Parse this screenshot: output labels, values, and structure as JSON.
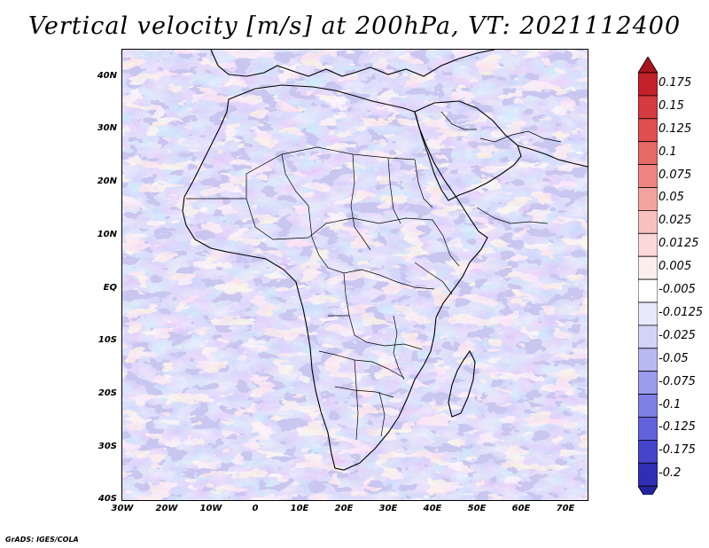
{
  "title": "Vertical velocity [m/s] at 200hPa, VT: 2021112400",
  "credit": "GrADS: IGES/COLA",
  "lat_labels": [
    "40N",
    "30N",
    "20N",
    "10N",
    "EQ",
    "10S",
    "20S",
    "30S",
    "40S"
  ],
  "lon_labels": [
    "30W",
    "20W",
    "10W",
    "0",
    "10E",
    "20E",
    "30E",
    "40E",
    "50E",
    "60E",
    "70E"
  ],
  "map_extent": {
    "lon_min": -30,
    "lon_max": 75,
    "lat_min": -40,
    "lat_max": 45
  },
  "colorbar": {
    "levels": [
      {
        "label": "0.175",
        "color": "#c2202a"
      },
      {
        "label": "0.15",
        "color": "#d43a3f"
      },
      {
        "label": "0.125",
        "color": "#e04f50"
      },
      {
        "label": "0.1",
        "color": "#e86866"
      },
      {
        "label": "0.075",
        "color": "#ef8483"
      },
      {
        "label": "0.05",
        "color": "#f4a2a0"
      },
      {
        "label": "0.025",
        "color": "#f8c0bf"
      },
      {
        "label": "0.0125",
        "color": "#fbd9d8"
      },
      {
        "label": "0.005",
        "color": "#fdeeee"
      },
      {
        "label": "-0.005",
        "color": "#ffffff"
      },
      {
        "label": "-0.0125",
        "color": "#e9e9fb"
      },
      {
        "label": "-0.025",
        "color": "#d3d3f7"
      },
      {
        "label": "-0.05",
        "color": "#b8b8f2"
      },
      {
        "label": "-0.075",
        "color": "#9c9cee"
      },
      {
        "label": "-0.1",
        "color": "#7f7fe6"
      },
      {
        "label": "-0.125",
        "color": "#6262dc"
      },
      {
        "label": "-0.175",
        "color": "#4545cc"
      },
      {
        "label": "-0.2",
        "color": "#2f2fb6"
      }
    ],
    "top_cap_color": "#a8141c",
    "bottom_cap_color": "#2323a0"
  }
}
